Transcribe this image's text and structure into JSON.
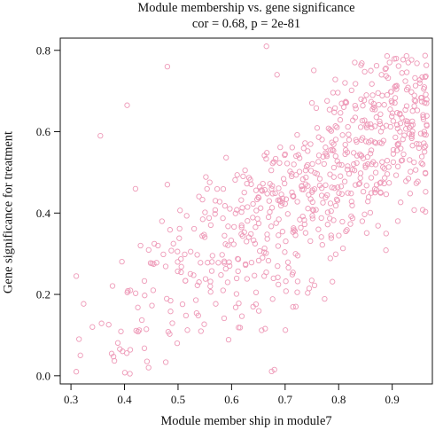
{
  "chart_data": {
    "type": "scatter",
    "title": "Module membership vs. gene significance",
    "subtitle": "cor = 0.68, p = 2e-81",
    "xlabel": "Module member ship in module7",
    "ylabel": "Gene significance for treatment",
    "xlim": [
      0.28,
      0.975
    ],
    "ylim": [
      -0.02,
      0.83
    ],
    "xticks": [
      "0.3",
      "0.4",
      "0.5",
      "0.6",
      "0.7",
      "0.8",
      "0.9"
    ],
    "yticks": [
      "0.0",
      "0.2",
      "0.4",
      "0.6",
      "0.8"
    ],
    "grid": false,
    "legend": "none",
    "marker": "open-circle",
    "point_color": "#ee9ab8",
    "n_points": 700,
    "trend": {
      "x_mean": 0.73,
      "y_mean": 0.45,
      "slope": 0.95,
      "correlation": 0.68
    },
    "anchor_points": [
      [
        0.665,
        0.81
      ],
      [
        0.685,
        0.74
      ],
      [
        0.48,
        0.76
      ],
      [
        0.405,
        0.665
      ],
      [
        0.355,
        0.59
      ],
      [
        0.48,
        0.47
      ],
      [
        0.47,
        0.38
      ],
      [
        0.43,
        0.32
      ],
      [
        0.31,
        0.245
      ],
      [
        0.315,
        0.09
      ],
      [
        0.31,
        0.01
      ],
      [
        0.34,
        0.12
      ],
      [
        0.41,
        0.005
      ],
      [
        0.445,
        0.02
      ],
      [
        0.68,
        0.015
      ],
      [
        0.72,
        0.17
      ],
      [
        0.83,
        0.77
      ],
      [
        0.895,
        0.77
      ],
      [
        0.93,
        0.77
      ],
      [
        0.95,
        0.56
      ],
      [
        0.96,
        0.6
      ],
      [
        0.905,
        0.71
      ],
      [
        0.86,
        0.75
      ],
      [
        0.88,
        0.74
      ]
    ]
  }
}
